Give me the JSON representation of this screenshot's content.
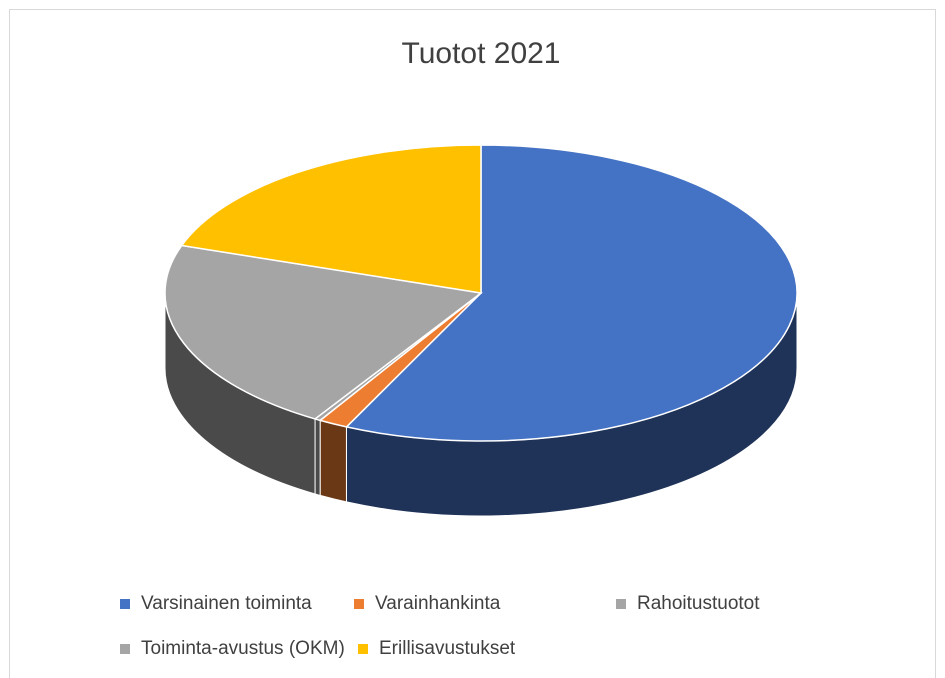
{
  "chart_data": {
    "type": "pie",
    "title": "Tuotot 2021",
    "categories": [
      "Varsinainen toiminta",
      "Varainhankinta",
      "Rahoitustuotot",
      "Toiminta-avustus (OKM)",
      "Erillisavustukset"
    ],
    "values": [
      57,
      1.5,
      0.3,
      21.4,
      19.8
    ],
    "colors": [
      "#4472c4",
      "#ed7d31",
      "#a5a5a5",
      "#a5a5a5",
      "#ffc000"
    ],
    "legend": "bottom"
  }
}
